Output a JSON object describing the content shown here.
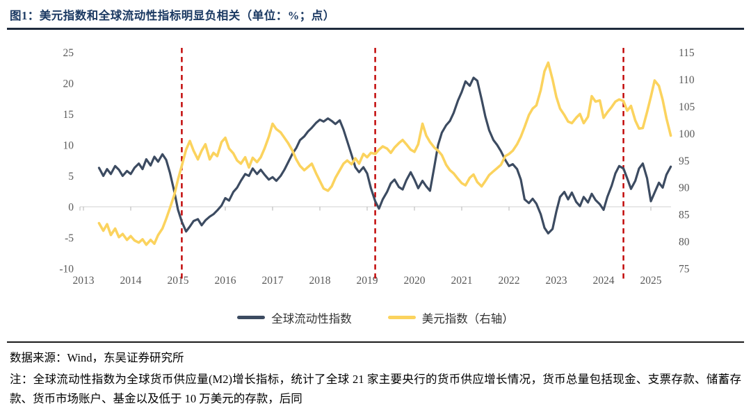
{
  "header": {
    "title": "图1：美元指数和全球流动性指标明显负相关（单位：%；点）"
  },
  "footer": {
    "source": "数据来源：Wind，东吴证券研究所",
    "note": "注：全球流动性指数为全球货币供应量(M2)增长指标，统计了全球 21 家主要央行的货币供应增长情况，货币总量包括现金、支票存款、储蓄存款、货币市场账户、基金以及低于 10 万美元的存款，后同"
  },
  "chart_data": {
    "type": "line",
    "title": "美元指数和全球流动性指标明显负相关",
    "units": "%；点",
    "grid": false,
    "legend_position": "bottom-center",
    "axis_text_color": "#595959",
    "zero_line_color": "#D9D9D9",
    "tick_color": "#BFBFBF",
    "x_axis": {
      "ticks": [
        2013,
        2014,
        2015,
        2016,
        2017,
        2018,
        2019,
        2020,
        2021,
        2022,
        2023,
        2024,
        2025
      ],
      "range": [
        2012.93,
        2025.5
      ]
    },
    "left_axis": {
      "ticks": [
        25,
        20,
        15,
        10,
        5,
        0,
        -5,
        -10
      ],
      "range": [
        -10,
        25
      ],
      "label": "%"
    },
    "right_axis": {
      "ticks": [
        115,
        110,
        105,
        100,
        95,
        90,
        85,
        80,
        75
      ],
      "range": [
        75,
        115
      ],
      "label": "点"
    },
    "event_vlines": {
      "color": "#C00000",
      "style": "dashed",
      "x": [
        2015.08,
        2019.17,
        2024.42
      ]
    },
    "series": [
      {
        "name": "全球流动性指数",
        "axis": "left",
        "color": "#3C4B61",
        "points": [
          [
            2013.33,
            6.3
          ],
          [
            2013.42,
            5.0
          ],
          [
            2013.5,
            6.1
          ],
          [
            2013.58,
            5.3
          ],
          [
            2013.67,
            6.6
          ],
          [
            2013.75,
            6.0
          ],
          [
            2013.83,
            5.0
          ],
          [
            2013.92,
            5.8
          ],
          [
            2014.0,
            5.3
          ],
          [
            2014.08,
            6.3
          ],
          [
            2014.17,
            7.0
          ],
          [
            2014.25,
            6.1
          ],
          [
            2014.33,
            7.7
          ],
          [
            2014.42,
            6.7
          ],
          [
            2014.5,
            8.1
          ],
          [
            2014.58,
            7.3
          ],
          [
            2014.67,
            8.5
          ],
          [
            2014.75,
            7.6
          ],
          [
            2014.83,
            5.5
          ],
          [
            2014.92,
            2.5
          ],
          [
            2015.0,
            -0.5
          ],
          [
            2015.08,
            -2.4
          ],
          [
            2015.17,
            -4.0
          ],
          [
            2015.25,
            -3.2
          ],
          [
            2015.33,
            -2.3
          ],
          [
            2015.42,
            -2.0
          ],
          [
            2015.5,
            -3.0
          ],
          [
            2015.58,
            -2.2
          ],
          [
            2015.67,
            -1.6
          ],
          [
            2015.75,
            -1.2
          ],
          [
            2015.83,
            -0.6
          ],
          [
            2015.92,
            0.2
          ],
          [
            2016.0,
            1.4
          ],
          [
            2016.08,
            1.0
          ],
          [
            2016.17,
            2.4
          ],
          [
            2016.25,
            3.1
          ],
          [
            2016.33,
            4.2
          ],
          [
            2016.42,
            5.3
          ],
          [
            2016.5,
            5.0
          ],
          [
            2016.58,
            6.2
          ],
          [
            2016.67,
            5.3
          ],
          [
            2016.75,
            6.0
          ],
          [
            2016.83,
            5.2
          ],
          [
            2016.92,
            4.4
          ],
          [
            2017.0,
            4.8
          ],
          [
            2017.08,
            4.2
          ],
          [
            2017.17,
            5.0
          ],
          [
            2017.25,
            6.0
          ],
          [
            2017.33,
            7.2
          ],
          [
            2017.42,
            8.6
          ],
          [
            2017.5,
            9.5
          ],
          [
            2017.58,
            10.8
          ],
          [
            2017.67,
            11.4
          ],
          [
            2017.75,
            12.2
          ],
          [
            2017.83,
            12.8
          ],
          [
            2017.92,
            13.6
          ],
          [
            2018.0,
            14.1
          ],
          [
            2018.08,
            13.8
          ],
          [
            2018.17,
            14.3
          ],
          [
            2018.25,
            13.9
          ],
          [
            2018.33,
            13.4
          ],
          [
            2018.42,
            14.0
          ],
          [
            2018.5,
            12.5
          ],
          [
            2018.58,
            10.6
          ],
          [
            2018.67,
            8.4
          ],
          [
            2018.75,
            6.4
          ],
          [
            2018.83,
            5.6
          ],
          [
            2018.92,
            6.4
          ],
          [
            2019.0,
            5.4
          ],
          [
            2019.08,
            3.0
          ],
          [
            2019.17,
            0.9
          ],
          [
            2019.25,
            -0.3
          ],
          [
            2019.33,
            1.2
          ],
          [
            2019.42,
            2.4
          ],
          [
            2019.5,
            3.8
          ],
          [
            2019.58,
            4.4
          ],
          [
            2019.67,
            3.2
          ],
          [
            2019.75,
            2.8
          ],
          [
            2019.83,
            4.3
          ],
          [
            2019.92,
            5.6
          ],
          [
            2020.0,
            4.4
          ],
          [
            2020.08,
            3.0
          ],
          [
            2020.17,
            4.2
          ],
          [
            2020.25,
            3.3
          ],
          [
            2020.33,
            2.6
          ],
          [
            2020.42,
            6.5
          ],
          [
            2020.5,
            10.0
          ],
          [
            2020.58,
            12.0
          ],
          [
            2020.67,
            13.2
          ],
          [
            2020.75,
            13.9
          ],
          [
            2020.83,
            15.2
          ],
          [
            2020.92,
            17.2
          ],
          [
            2021.0,
            18.6
          ],
          [
            2021.08,
            20.3
          ],
          [
            2021.17,
            19.6
          ],
          [
            2021.25,
            20.9
          ],
          [
            2021.33,
            20.4
          ],
          [
            2021.42,
            17.4
          ],
          [
            2021.5,
            14.6
          ],
          [
            2021.58,
            12.4
          ],
          [
            2021.67,
            10.8
          ],
          [
            2021.75,
            10.0
          ],
          [
            2021.83,
            9.0
          ],
          [
            2021.92,
            7.6
          ],
          [
            2022.0,
            6.6
          ],
          [
            2022.08,
            6.9
          ],
          [
            2022.17,
            6.1
          ],
          [
            2022.25,
            4.4
          ],
          [
            2022.33,
            1.2
          ],
          [
            2022.42,
            0.6
          ],
          [
            2022.5,
            1.3
          ],
          [
            2022.58,
            0.5
          ],
          [
            2022.67,
            -1.2
          ],
          [
            2022.75,
            -3.4
          ],
          [
            2022.83,
            -4.3
          ],
          [
            2022.92,
            -3.6
          ],
          [
            2023.0,
            -0.8
          ],
          [
            2023.08,
            1.6
          ],
          [
            2023.17,
            2.4
          ],
          [
            2023.25,
            1.2
          ],
          [
            2023.33,
            2.3
          ],
          [
            2023.42,
            0.8
          ],
          [
            2023.5,
            0.1
          ],
          [
            2023.58,
            1.6
          ],
          [
            2023.67,
            0.7
          ],
          [
            2023.75,
            2.1
          ],
          [
            2023.83,
            1.1
          ],
          [
            2023.92,
            0.4
          ],
          [
            2024.0,
            -0.5
          ],
          [
            2024.08,
            1.6
          ],
          [
            2024.17,
            3.4
          ],
          [
            2024.25,
            5.4
          ],
          [
            2024.33,
            6.6
          ],
          [
            2024.42,
            6.2
          ],
          [
            2024.5,
            4.6
          ],
          [
            2024.58,
            2.9
          ],
          [
            2024.67,
            4.2
          ],
          [
            2024.75,
            6.2
          ],
          [
            2024.83,
            7.0
          ],
          [
            2024.92,
            4.6
          ],
          [
            2025.0,
            0.9
          ],
          [
            2025.08,
            2.3
          ],
          [
            2025.17,
            3.9
          ],
          [
            2025.25,
            3.1
          ],
          [
            2025.33,
            5.2
          ],
          [
            2025.42,
            6.5
          ]
        ]
      },
      {
        "name": "美元指数（右轴）",
        "axis": "right",
        "color": "#FBD35E",
        "points": [
          [
            2013.33,
            83.4
          ],
          [
            2013.42,
            82.0
          ],
          [
            2013.5,
            83.2
          ],
          [
            2013.58,
            81.2
          ],
          [
            2013.67,
            82.4
          ],
          [
            2013.75,
            80.8
          ],
          [
            2013.83,
            81.4
          ],
          [
            2013.92,
            80.3
          ],
          [
            2014.0,
            81.0
          ],
          [
            2014.08,
            80.2
          ],
          [
            2014.17,
            79.8
          ],
          [
            2014.25,
            80.4
          ],
          [
            2014.33,
            79.4
          ],
          [
            2014.42,
            80.3
          ],
          [
            2014.5,
            79.6
          ],
          [
            2014.58,
            81.2
          ],
          [
            2014.67,
            82.4
          ],
          [
            2014.75,
            84.2
          ],
          [
            2014.83,
            86.2
          ],
          [
            2014.92,
            88.6
          ],
          [
            2015.0,
            91.5
          ],
          [
            2015.08,
            94.0
          ],
          [
            2015.17,
            97.0
          ],
          [
            2015.25,
            98.6
          ],
          [
            2015.33,
            96.8
          ],
          [
            2015.42,
            95.2
          ],
          [
            2015.5,
            96.8
          ],
          [
            2015.58,
            98.0
          ],
          [
            2015.67,
            95.2
          ],
          [
            2015.75,
            96.4
          ],
          [
            2015.83,
            95.8
          ],
          [
            2015.92,
            98.4
          ],
          [
            2016.0,
            99.2
          ],
          [
            2016.08,
            97.2
          ],
          [
            2016.17,
            96.3
          ],
          [
            2016.25,
            95.0
          ],
          [
            2016.33,
            94.4
          ],
          [
            2016.42,
            95.6
          ],
          [
            2016.5,
            93.7
          ],
          [
            2016.58,
            95.5
          ],
          [
            2016.67,
            94.7
          ],
          [
            2016.75,
            95.6
          ],
          [
            2016.83,
            97.2
          ],
          [
            2016.92,
            99.4
          ],
          [
            2017.0,
            101.8
          ],
          [
            2017.08,
            100.8
          ],
          [
            2017.17,
            100.2
          ],
          [
            2017.25,
            99.2
          ],
          [
            2017.33,
            98.2
          ],
          [
            2017.42,
            96.8
          ],
          [
            2017.5,
            95.2
          ],
          [
            2017.58,
            94.0
          ],
          [
            2017.67,
            93.2
          ],
          [
            2017.75,
            93.8
          ],
          [
            2017.83,
            94.4
          ],
          [
            2017.92,
            92.6
          ],
          [
            2018.0,
            91.2
          ],
          [
            2018.08,
            89.8
          ],
          [
            2018.17,
            89.4
          ],
          [
            2018.25,
            90.2
          ],
          [
            2018.33,
            91.8
          ],
          [
            2018.42,
            93.2
          ],
          [
            2018.5,
            94.4
          ],
          [
            2018.58,
            95.0
          ],
          [
            2018.67,
            94.3
          ],
          [
            2018.75,
            95.4
          ],
          [
            2018.83,
            94.4
          ],
          [
            2018.92,
            96.2
          ],
          [
            2019.0,
            95.6
          ],
          [
            2019.08,
            96.4
          ],
          [
            2019.17,
            96.2
          ],
          [
            2019.25,
            97.0
          ],
          [
            2019.33,
            97.6
          ],
          [
            2019.42,
            97.2
          ],
          [
            2019.5,
            96.4
          ],
          [
            2019.58,
            97.4
          ],
          [
            2019.67,
            98.2
          ],
          [
            2019.75,
            98.8
          ],
          [
            2019.83,
            98.0
          ],
          [
            2019.92,
            97.0
          ],
          [
            2020.0,
            96.6
          ],
          [
            2020.08,
            98.0
          ],
          [
            2020.17,
            101.8
          ],
          [
            2020.25,
            99.6
          ],
          [
            2020.33,
            98.4
          ],
          [
            2020.42,
            97.4
          ],
          [
            2020.5,
            96.8
          ],
          [
            2020.58,
            96.0
          ],
          [
            2020.67,
            94.2
          ],
          [
            2020.75,
            93.2
          ],
          [
            2020.83,
            92.6
          ],
          [
            2020.92,
            91.6
          ],
          [
            2021.0,
            90.8
          ],
          [
            2021.08,
            90.4
          ],
          [
            2021.17,
            91.8
          ],
          [
            2021.25,
            92.4
          ],
          [
            2021.33,
            91.0
          ],
          [
            2021.42,
            90.2
          ],
          [
            2021.5,
            91.2
          ],
          [
            2021.58,
            92.3
          ],
          [
            2021.67,
            93.0
          ],
          [
            2021.75,
            93.6
          ],
          [
            2021.83,
            94.2
          ],
          [
            2021.92,
            95.8
          ],
          [
            2022.0,
            96.2
          ],
          [
            2022.08,
            96.8
          ],
          [
            2022.17,
            98.0
          ],
          [
            2022.25,
            99.4
          ],
          [
            2022.33,
            101.2
          ],
          [
            2022.42,
            103.4
          ],
          [
            2022.5,
            104.6
          ],
          [
            2022.58,
            105.2
          ],
          [
            2022.67,
            108.0
          ],
          [
            2022.75,
            111.5
          ],
          [
            2022.83,
            113.1
          ],
          [
            2022.92,
            110.0
          ],
          [
            2023.0,
            106.8
          ],
          [
            2023.08,
            104.6
          ],
          [
            2023.17,
            103.4
          ],
          [
            2023.25,
            102.2
          ],
          [
            2023.33,
            101.9
          ],
          [
            2023.42,
            102.9
          ],
          [
            2023.5,
            103.6
          ],
          [
            2023.58,
            101.9
          ],
          [
            2023.67,
            103.1
          ],
          [
            2023.75,
            106.9
          ],
          [
            2023.83,
            105.9
          ],
          [
            2023.92,
            106.1
          ],
          [
            2024.0,
            102.9
          ],
          [
            2024.08,
            103.9
          ],
          [
            2024.17,
            104.9
          ],
          [
            2024.25,
            105.9
          ],
          [
            2024.33,
            106.3
          ],
          [
            2024.42,
            106.0
          ],
          [
            2024.5,
            104.2
          ],
          [
            2024.58,
            105.1
          ],
          [
            2024.67,
            102.4
          ],
          [
            2024.75,
            100.9
          ],
          [
            2024.83,
            101.0
          ],
          [
            2024.92,
            104.0
          ],
          [
            2025.0,
            106.8
          ],
          [
            2025.08,
            109.8
          ],
          [
            2025.17,
            108.8
          ],
          [
            2025.25,
            106.2
          ],
          [
            2025.33,
            102.8
          ],
          [
            2025.42,
            99.6
          ]
        ]
      }
    ]
  }
}
